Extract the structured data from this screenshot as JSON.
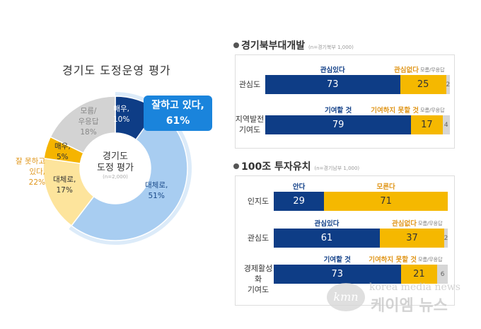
{
  "donut": {
    "title": "경기도 도정운영 평가",
    "center": [
      "경기도",
      "도정 평가",
      "(n=2,000)"
    ],
    "callout": [
      "잘하고 있다,",
      "61%"
    ],
    "left_group": [
      "잘 못하고",
      "있다,",
      "22%"
    ],
    "segments": [
      {
        "label": "매우,",
        "value": 10,
        "color": "#0e3d86"
      },
      {
        "label": "대체로,",
        "value": 51,
        "color": "#a8cdf1"
      },
      {
        "label": "대체로,",
        "value": 17,
        "color": "#fde49c"
      },
      {
        "label": "매우,",
        "value": 5,
        "color": "#f5b400"
      },
      {
        "label": "모름/ 우응답",
        "value": 18,
        "color": "#d3d3d3"
      }
    ]
  },
  "chart_data": [
    {
      "type": "pie",
      "title": "경기도 도정운영 평가",
      "categories": [
        "잘하고 있다-매우",
        "잘하고 있다-대체로",
        "잘 못하고 있다-대체로",
        "잘 못하고 있다-매우",
        "모름/무응답"
      ],
      "values": [
        10,
        51,
        17,
        5,
        18
      ],
      "groups": {
        "잘하고 있다": 61,
        "잘 못하고 있다": 22
      }
    },
    {
      "type": "bar",
      "stacked": true,
      "title": "경기북부대개발",
      "note": "(n=경기북부 1,000)",
      "rows": [
        {
          "label": "관심도",
          "labels": [
            "관심있다",
            "관심없다",
            "모름/무응답"
          ],
          "values": [
            73,
            25,
            2
          ]
        },
        {
          "label": "지역발전 기여도",
          "labels": [
            "기여할 것",
            "기여하지 못할 것",
            "모름/무응답"
          ],
          "values": [
            79,
            17,
            4
          ]
        }
      ]
    },
    {
      "type": "bar",
      "stacked": true,
      "title": "100조 투자유치",
      "note": "(n=경기남부 1,000)",
      "rows": [
        {
          "label": "인지도",
          "labels": [
            "안다",
            "모른다"
          ],
          "values": [
            29,
            71
          ]
        },
        {
          "label": "관심도",
          "labels": [
            "관심있다",
            "관심없다",
            "모름/무응답"
          ],
          "values": [
            61,
            37,
            2
          ]
        },
        {
          "label": "경제활성화 기여도",
          "labels": [
            "기여할 것",
            "기여하지 못할 것",
            "모름/무응답"
          ],
          "values": [
            73,
            21,
            6
          ]
        }
      ]
    }
  ],
  "colors": {
    "positive": "#0e3d86",
    "negative": "#f5b800",
    "unknown": "#d6d6d6",
    "neg_text": "#e0961a"
  },
  "watermark": {
    "logo": "kmn",
    "en": "korea media news",
    "ko": "케이엠 뉴스"
  }
}
